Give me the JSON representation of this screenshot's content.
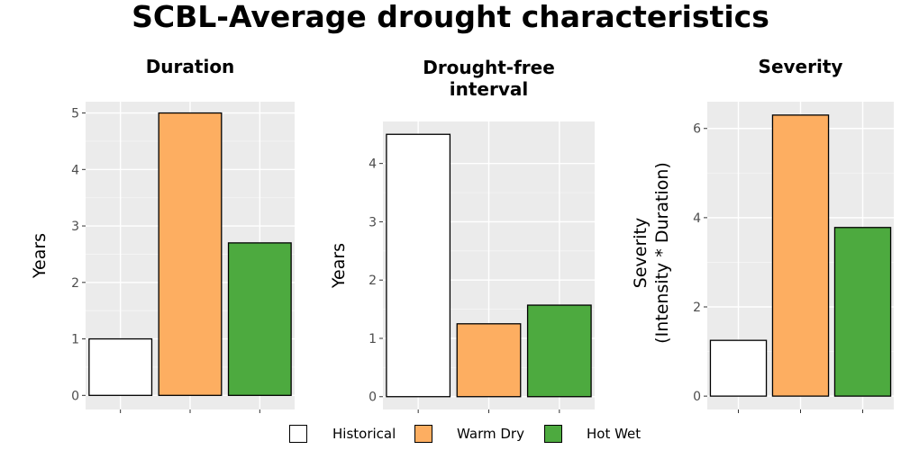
{
  "title": "SCBL-Average drought characteristics",
  "legend": [
    {
      "label": "Historical",
      "color": "#ffffff"
    },
    {
      "label": "Warm Dry",
      "color": "#fdae61"
    },
    {
      "label": "Hot Wet",
      "color": "#4daa3f"
    }
  ],
  "chart_data": [
    {
      "type": "bar",
      "title": "Duration",
      "ylabel": "Years",
      "categories": [
        "Historical",
        "Warm Dry",
        "Hot Wet"
      ],
      "values": [
        1.0,
        5.0,
        2.7
      ],
      "ylim": [
        -0.25,
        5.2
      ],
      "yticks": [
        0,
        1,
        2,
        3,
        4,
        5
      ],
      "grid": true
    },
    {
      "type": "bar",
      "title": "Drought-free\ninterval",
      "ylabel": "Years",
      "categories": [
        "Historical",
        "Warm Dry",
        "Hot Wet"
      ],
      "values": [
        4.5,
        1.25,
        1.57
      ],
      "ylim": [
        -0.22,
        4.72
      ],
      "yticks": [
        0,
        1,
        2,
        3,
        4
      ],
      "grid": true
    },
    {
      "type": "bar",
      "title": "Severity",
      "ylabel": "Severity\n(Intensity * Duration)",
      "categories": [
        "Historical",
        "Warm Dry",
        "Hot Wet"
      ],
      "values": [
        1.25,
        6.3,
        3.78
      ],
      "ylim": [
        -0.3,
        6.6
      ],
      "yticks": [
        0,
        2,
        4,
        6
      ],
      "grid": true
    }
  ]
}
